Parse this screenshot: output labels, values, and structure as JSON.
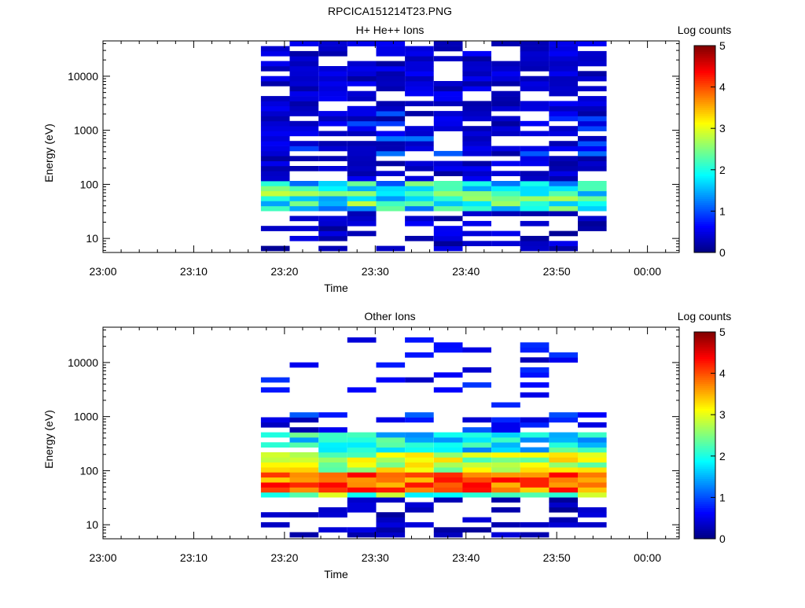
{
  "page_title": "RPCICA151214T23.PNG",
  "chart_data": [
    {
      "type": "heatmap",
      "title": "H+ He++ Ions",
      "xlabel": "Time",
      "ylabel": "Energy (eV)",
      "x_ticks": [
        "23:00",
        "23:10",
        "23:20",
        "23:30",
        "23:40",
        "23:50",
        "00:00"
      ],
      "x_range_minutes": [
        0,
        63.5
      ],
      "y_scale": "log",
      "y_ticks": [
        10,
        100,
        1000,
        10000
      ],
      "y_tick_labels": [
        "10",
        "100",
        "1000",
        "10000"
      ],
      "ylim": [
        5.5,
        45000
      ],
      "colorbar": {
        "label": "Log counts",
        "range": [
          0,
          5
        ],
        "ticks": [
          "0",
          "1",
          "2",
          "3",
          "4",
          "5"
        ],
        "colormap": "jet"
      },
      "data_time_range_minutes": [
        17.4,
        55.5
      ],
      "time_bins": 12,
      "energy_bins_log10": {
        "min": 0.77,
        "max": 4.65,
        "count": 42
      },
      "dominant_band": {
        "energy_eV": [
          30,
          110
        ],
        "peak_log_counts": 2.6
      },
      "summary": "Sparse low-level counts (log counts ~0.2-0.6) at all energies between 23:17 and 23:56; moderate band (~1.5-2.6) near 40-70 eV."
    },
    {
      "type": "heatmap",
      "title": "Other Ions",
      "xlabel": "Time",
      "ylabel": "Energy (eV)",
      "x_ticks": [
        "23:00",
        "23:10",
        "23:20",
        "23:30",
        "23:40",
        "23:50",
        "00:00"
      ],
      "x_range_minutes": [
        0,
        63.5
      ],
      "y_scale": "log",
      "y_ticks": [
        10,
        100,
        1000,
        10000
      ],
      "y_tick_labels": [
        "10",
        "100",
        "1000",
        "10000"
      ],
      "ylim": [
        5.5,
        45000
      ],
      "colorbar": {
        "label": "Log counts",
        "range": [
          0,
          5
        ],
        "ticks": [
          "0",
          "1",
          "2",
          "3",
          "4",
          "5"
        ],
        "colormap": "jet"
      },
      "data_time_range_minutes": [
        17.4,
        55.5
      ],
      "time_bins": 12,
      "energy_bins_log10": {
        "min": 0.77,
        "max": 4.65,
        "count": 42
      },
      "dominant_band": {
        "energy_eV": [
          35,
          90
        ],
        "peak_log_counts": 4.3
      },
      "summary": "Strong band (log counts ~3.5-4.4) near 40-80 eV; medium counts (~2-3) up to ~500 eV; sparse lines up to ~30000 eV."
    }
  ]
}
